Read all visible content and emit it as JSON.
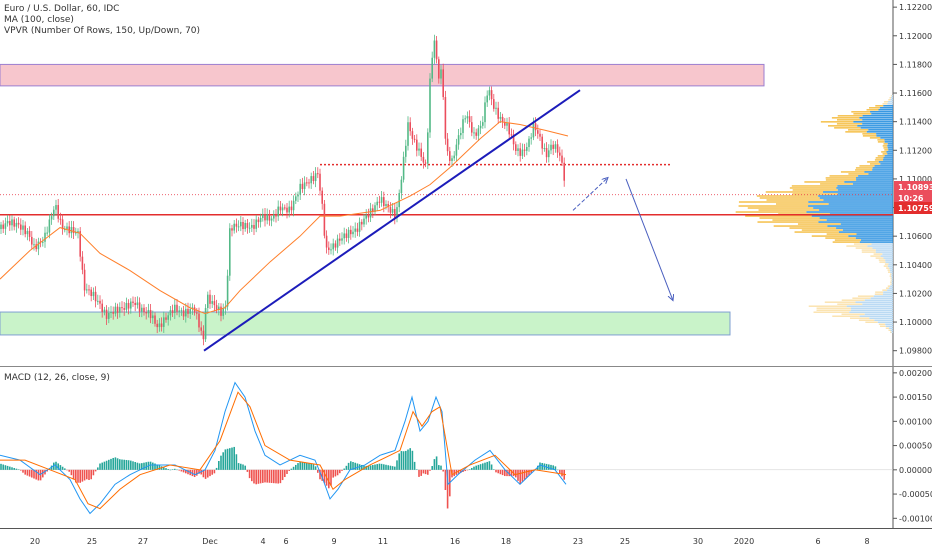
{
  "legend": {
    "symbol": "Euro / U.S. Dollar, 60, IDC",
    "ma": "MA (100, close)",
    "vpvr": "VPVR (Number Of Rows, 150, Up/Down, 70)",
    "macd": "MACD (12, 26, close, 9)"
  },
  "chart_data": [
    {
      "type": "candlestick",
      "title": "Euro / U.S. Dollar, 60, IDC",
      "ylim": [
        1.097,
        1.1225
      ],
      "y_ticks": [
        "1.09800",
        "1.10000",
        "1.10200",
        "1.10400",
        "1.10600",
        "1.10800",
        "1.11000",
        "1.11200",
        "1.11400",
        "1.11600",
        "1.11800",
        "1.12000",
        "1.12200"
      ],
      "x_ticks": [
        "20",
        "25",
        "27",
        "Dec",
        "4",
        "6",
        "9",
        "11",
        "16",
        "18",
        "23",
        "25",
        "30",
        "2020",
        "6",
        "8"
      ],
      "price_path": [
        [
          0,
          1.1065
        ],
        [
          8,
          1.107
        ],
        [
          18,
          1.1068
        ],
        [
          28,
          1.1062
        ],
        [
          34,
          1.1052
        ],
        [
          44,
          1.1058
        ],
        [
          55,
          1.1082
        ],
        [
          62,
          1.1066
        ],
        [
          72,
          1.1064
        ],
        [
          78,
          1.1062
        ],
        [
          84,
          1.1024
        ],
        [
          92,
          1.102
        ],
        [
          100,
          1.1012
        ],
        [
          106,
          1.1004
        ],
        [
          114,
          1.1008
        ],
        [
          124,
          1.101
        ],
        [
          134,
          1.1014
        ],
        [
          142,
          1.1008
        ],
        [
          150,
          1.1006
        ],
        [
          158,
          1.0996
        ],
        [
          165,
          1.1002
        ],
        [
          174,
          1.101
        ],
        [
          184,
          1.1006
        ],
        [
          194,
          1.101
        ],
        [
          200,
          1.0996
        ],
        [
          204,
          1.0986
        ],
        [
          206,
          1.1018
        ],
        [
          214,
          1.1012
        ],
        [
          222,
          1.1006
        ],
        [
          226,
          1.1012
        ],
        [
          230,
          1.1066
        ],
        [
          240,
          1.1068
        ],
        [
          252,
          1.1066
        ],
        [
          262,
          1.1074
        ],
        [
          272,
          1.1072
        ],
        [
          280,
          1.108
        ],
        [
          290,
          1.1078
        ],
        [
          300,
          1.1094
        ],
        [
          312,
          1.11
        ],
        [
          318,
          1.1104
        ],
        [
          322,
          1.1082
        ],
        [
          326,
          1.105
        ],
        [
          332,
          1.1052
        ],
        [
          340,
          1.1058
        ],
        [
          348,
          1.1062
        ],
        [
          356,
          1.1064
        ],
        [
          364,
          1.1072
        ],
        [
          372,
          1.1078
        ],
        [
          380,
          1.1086
        ],
        [
          388,
          1.108
        ],
        [
          396,
          1.1074
        ],
        [
          402,
          1.1104
        ],
        [
          408,
          1.1138
        ],
        [
          414,
          1.1126
        ],
        [
          420,
          1.1118
        ],
        [
          426,
          1.1108
        ],
        [
          430,
          1.1168
        ],
        [
          434,
          1.12
        ],
        [
          438,
          1.1172
        ],
        [
          442,
          1.1175
        ],
        [
          446,
          1.112
        ],
        [
          452,
          1.1112
        ],
        [
          458,
          1.1128
        ],
        [
          466,
          1.1146
        ],
        [
          474,
          1.113
        ],
        [
          482,
          1.1138
        ],
        [
          488,
          1.1164
        ],
        [
          494,
          1.115
        ],
        [
          500,
          1.1142
        ],
        [
          508,
          1.1136
        ],
        [
          516,
          1.112
        ],
        [
          522,
          1.1118
        ],
        [
          528,
          1.1124
        ],
        [
          534,
          1.1138
        ],
        [
          540,
          1.1128
        ],
        [
          546,
          1.1116
        ],
        [
          552,
          1.1124
        ],
        [
          558,
          1.112
        ],
        [
          563,
          1.1108
        ],
        [
          566,
          1.109
        ]
      ],
      "ma_path": [
        [
          0,
          1.103
        ],
        [
          30,
          1.105
        ],
        [
          60,
          1.1066
        ],
        [
          80,
          1.1062
        ],
        [
          100,
          1.1048
        ],
        [
          130,
          1.1036
        ],
        [
          160,
          1.1022
        ],
        [
          190,
          1.101
        ],
        [
          205,
          1.1006
        ],
        [
          225,
          1.101
        ],
        [
          240,
          1.1022
        ],
        [
          270,
          1.1042
        ],
        [
          300,
          1.106
        ],
        [
          320,
          1.1074
        ],
        [
          340,
          1.1074
        ],
        [
          380,
          1.1078
        ],
        [
          410,
          1.1088
        ],
        [
          430,
          1.1096
        ],
        [
          450,
          1.1108
        ],
        [
          480,
          1.1128
        ],
        [
          500,
          1.114
        ],
        [
          520,
          1.1138
        ],
        [
          545,
          1.1134
        ],
        [
          568,
          1.113
        ]
      ],
      "current_price": "1.10893",
      "countdown": "10:26",
      "line_value": "1.10759",
      "zones": [
        {
          "name": "resistance",
          "from": 1.1165,
          "to": 1.118,
          "color": "#f7c6cd"
        },
        {
          "name": "support",
          "from": 1.0991,
          "to": 1.1007,
          "color": "#c9f3c9"
        }
      ],
      "horizontal_line": 1.1075,
      "dotted_line": 1.111,
      "trendline": [
        [
          204,
          1.098
        ],
        [
          580,
          1.1162
        ]
      ],
      "arrows": [
        {
          "from": [
            573,
            1.1078
          ],
          "to": [
            608,
            1.1101
          ],
          "style": "dashed"
        },
        {
          "from": [
            626,
            1.11
          ],
          "to": [
            673,
            1.1015
          ],
          "style": "solid"
        }
      ],
      "volume_profile": {
        "poc": 1.1075,
        "value_area": [
          1.1056,
          1.1152
        ]
      },
      "colors": {
        "up": "#53b987",
        "down": "#eb4d5c",
        "ma": "#ff7f2a",
        "trend": "#1c1cba",
        "level": "#e32d2d"
      }
    },
    {
      "type": "macd",
      "title": "MACD (12, 26, close, 9)",
      "ylim": [
        -0.0012,
        0.0021
      ],
      "y_ticks": [
        "0.00200",
        "0.00150",
        "0.00100",
        "0.00050",
        "0.00000",
        "-0.00050",
        "-0.00100"
      ],
      "macd_path": [
        [
          0,
          0.0003
        ],
        [
          20,
          0.0002
        ],
        [
          40,
          -0.0001
        ],
        [
          55,
          0.0001
        ],
        [
          70,
          -0.0002
        ],
        [
          80,
          -0.0006
        ],
        [
          90,
          -0.0009
        ],
        [
          100,
          -0.0007
        ],
        [
          115,
          -0.0003
        ],
        [
          130,
          -0.0001
        ],
        [
          150,
          0.0001
        ],
        [
          175,
          0.0001
        ],
        [
          195,
          -0.0001
        ],
        [
          205,
          0.0
        ],
        [
          215,
          0.0004
        ],
        [
          225,
          0.0012
        ],
        [
          235,
          0.0018
        ],
        [
          245,
          0.0015
        ],
        [
          255,
          0.0008
        ],
        [
          265,
          0.0003
        ],
        [
          280,
          0.0001
        ],
        [
          300,
          0.0003
        ],
        [
          315,
          0.0002
        ],
        [
          323,
          -0.0002
        ],
        [
          330,
          -0.0006
        ],
        [
          338,
          -0.0004
        ],
        [
          350,
          0.0
        ],
        [
          365,
          0.0001
        ],
        [
          380,
          0.0003
        ],
        [
          395,
          0.0004
        ],
        [
          405,
          0.001
        ],
        [
          412,
          0.0015
        ],
        [
          420,
          0.0008
        ],
        [
          428,
          0.001
        ],
        [
          436,
          0.0015
        ],
        [
          442,
          0.0012
        ],
        [
          448,
          -0.0003
        ],
        [
          458,
          -0.0001
        ],
        [
          475,
          0.0002
        ],
        [
          490,
          0.0004
        ],
        [
          505,
          0.0
        ],
        [
          520,
          -0.0003
        ],
        [
          540,
          0.0001
        ],
        [
          555,
          0.0
        ],
        [
          566,
          -0.0003
        ]
      ],
      "signal_path": [
        [
          0,
          0.0002
        ],
        [
          25,
          0.0002
        ],
        [
          50,
          0.0
        ],
        [
          75,
          -0.0002
        ],
        [
          88,
          -0.0007
        ],
        [
          100,
          -0.0008
        ],
        [
          120,
          -0.0004
        ],
        [
          140,
          -0.0001
        ],
        [
          170,
          0.0001
        ],
        [
          200,
          0.0
        ],
        [
          220,
          0.0006
        ],
        [
          238,
          0.0016
        ],
        [
          250,
          0.0013
        ],
        [
          265,
          0.0005
        ],
        [
          290,
          0.0002
        ],
        [
          320,
          0.0001
        ],
        [
          333,
          -0.0004
        ],
        [
          345,
          -0.0002
        ],
        [
          370,
          0.0001
        ],
        [
          400,
          0.0004
        ],
        [
          413,
          0.0012
        ],
        [
          422,
          0.0009
        ],
        [
          432,
          0.0012
        ],
        [
          440,
          0.0013
        ],
        [
          452,
          -0.0001
        ],
        [
          470,
          0.0001
        ],
        [
          495,
          0.0003
        ],
        [
          515,
          -0.0001
        ],
        [
          535,
          0.0
        ],
        [
          566,
          -0.0001
        ]
      ],
      "colors": {
        "macd": "#2196f3",
        "signal": "#ff6d00",
        "hist_up": "#26a69a",
        "hist_down": "#ef5350"
      }
    }
  ]
}
